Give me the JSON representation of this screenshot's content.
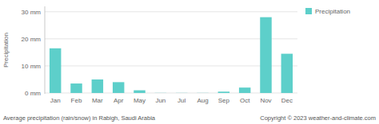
{
  "chart_data": {
    "type": "bar",
    "categories": [
      "Jan",
      "Feb",
      "Mar",
      "Apr",
      "May",
      "Jun",
      "Jul",
      "Aug",
      "Sep",
      "Oct",
      "Nov",
      "Dec"
    ],
    "series": [
      {
        "name": "Precipitation",
        "color": "#5dcfca",
        "values": [
          16.5,
          3.5,
          5.0,
          4.0,
          1.0,
          0.05,
          0.05,
          0.05,
          0.5,
          2.0,
          28.0,
          14.5
        ]
      }
    ],
    "ylim": [
      -0.3,
      32
    ],
    "yticks": [
      {
        "value": 0,
        "label": "0 mm"
      },
      {
        "value": 10,
        "label": "10 mm"
      },
      {
        "value": 20,
        "label": "20 mm"
      },
      {
        "value": 30,
        "label": "30 mm"
      }
    ],
    "y_label": "Precipitation",
    "x_label": "Average precipitation (rain/snow) in Rabigh, Saudi Arabia",
    "annotations": [
      "Copyright © 2023  weather-and-climate.com"
    ],
    "grid": true,
    "legend": "upper right"
  }
}
